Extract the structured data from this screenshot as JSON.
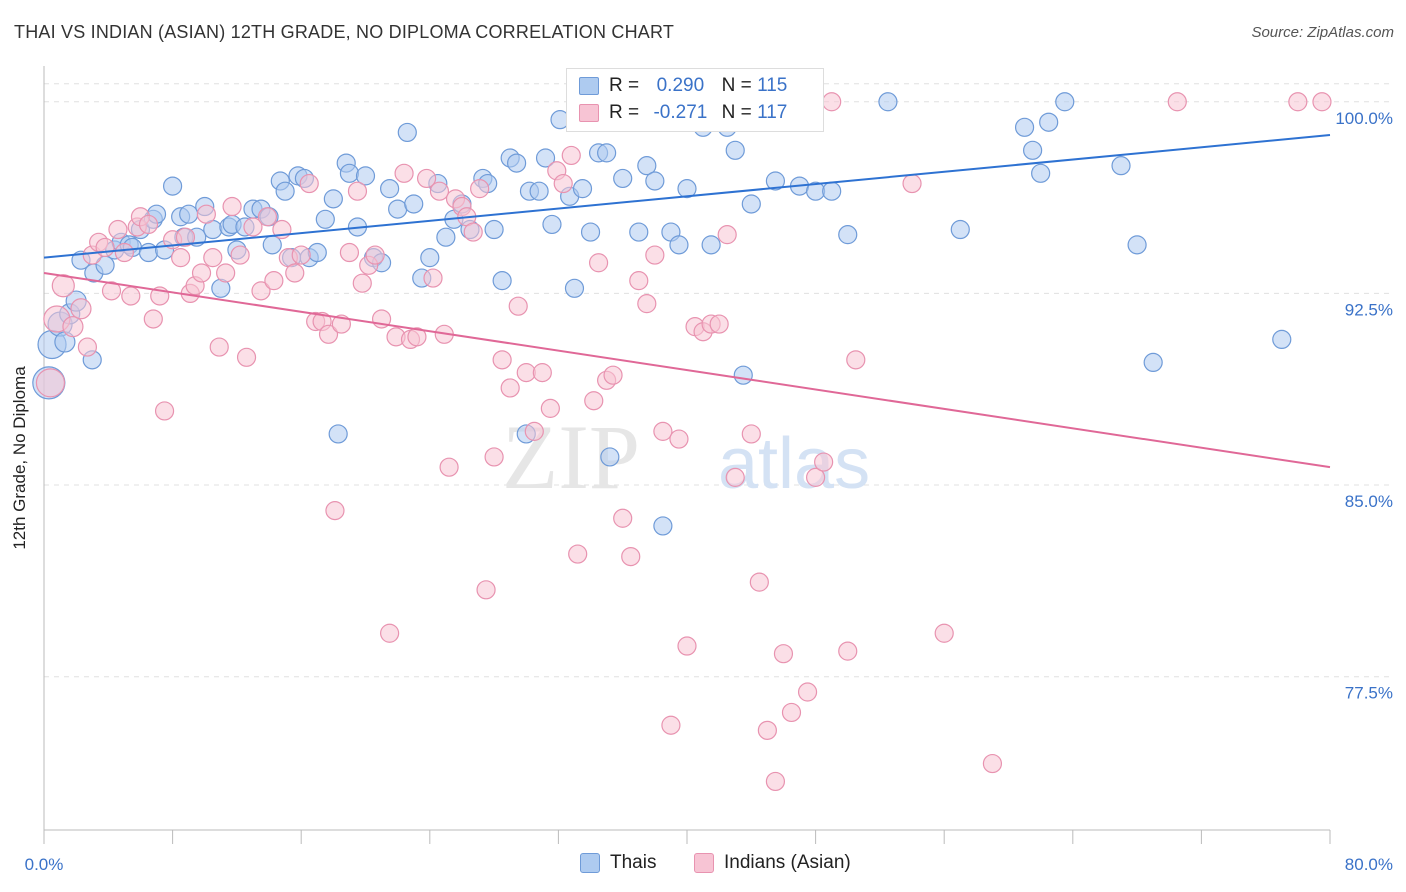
{
  "title": "THAI VS INDIAN (ASIAN) 12TH GRADE, NO DIPLOMA CORRELATION CHART",
  "source": "Source: ZipAtlas.com",
  "watermark": {
    "zip": "ZIP",
    "atlas": "atlas"
  },
  "colors": {
    "thai_fill": "#aecbf0",
    "thai_stroke": "#6f9bd8",
    "thai_line": "#2e72d2",
    "indian_fill": "#f7c4d4",
    "indian_stroke": "#e893b0",
    "indian_line": "#e06897",
    "axis_text": "#3a72c8",
    "grid": "#e0e0e0"
  },
  "legend_top": {
    "thai": {
      "r_label": "R =",
      "r_value": "0.290",
      "n_label": "N =",
      "n_value": "115"
    },
    "indian": {
      "r_label": "R =",
      "r_value": "-0.271",
      "n_label": "N =",
      "n_value": "117"
    }
  },
  "chart_data": {
    "type": "scatter",
    "title": "THAI VS INDIAN (ASIAN) 12TH GRADE, NO DIPLOMA CORRELATION CHART",
    "xlabel": "",
    "ylabel": "12th Grade, No Diploma",
    "xlim": [
      0,
      80
    ],
    "ylim": [
      71.5,
      101.4
    ],
    "x_tick_labels": [
      "0.0%",
      "80.0%"
    ],
    "y_ticks": [
      77.5,
      85.0,
      92.5,
      100.0
    ],
    "y_tick_labels": [
      "77.5%",
      "85.0%",
      "92.5%",
      "100.0%"
    ],
    "grid": true,
    "legend_placement": "bottom",
    "series": [
      {
        "name": "Thais",
        "trend": {
          "x": [
            0,
            80
          ],
          "y": [
            93.9,
            98.7
          ]
        },
        "points": [
          [
            0.3,
            89.0,
            16
          ],
          [
            0.5,
            90.5,
            14
          ],
          [
            1.0,
            91.3,
            12
          ],
          [
            1.3,
            90.6,
            10
          ],
          [
            1.6,
            91.7,
            10
          ],
          [
            2.0,
            92.2,
            10
          ],
          [
            2.3,
            93.8,
            9
          ],
          [
            3.0,
            89.9,
            9
          ],
          [
            3.1,
            93.3,
            9
          ],
          [
            3.8,
            93.6,
            9
          ],
          [
            4.4,
            94.2,
            9
          ],
          [
            4.8,
            94.5,
            9
          ],
          [
            5.3,
            94.4,
            9
          ],
          [
            5.5,
            94.3,
            9
          ],
          [
            6.0,
            95.0,
            9
          ],
          [
            6.5,
            94.1,
            9
          ],
          [
            6.8,
            95.4,
            9
          ],
          [
            7.0,
            95.6,
            9
          ],
          [
            7.5,
            94.2,
            9
          ],
          [
            8.0,
            96.7,
            9
          ],
          [
            8.5,
            95.5,
            9
          ],
          [
            8.7,
            94.7,
            9
          ],
          [
            9.0,
            95.6,
            9
          ],
          [
            9.5,
            94.7,
            9
          ],
          [
            10.0,
            95.9,
            9
          ],
          [
            10.5,
            95.0,
            9
          ],
          [
            11.0,
            92.7,
            9
          ],
          [
            11.5,
            95.1,
            9
          ],
          [
            11.7,
            95.2,
            9
          ],
          [
            12.0,
            94.2,
            9
          ],
          [
            12.5,
            95.1,
            9
          ],
          [
            13.0,
            95.8,
            9
          ],
          [
            13.5,
            95.8,
            9
          ],
          [
            14.0,
            95.5,
            9
          ],
          [
            14.2,
            94.4,
            9
          ],
          [
            14.7,
            96.9,
            9
          ],
          [
            15.0,
            96.5,
            9
          ],
          [
            15.4,
            93.9,
            9
          ],
          [
            15.8,
            97.1,
            9
          ],
          [
            16.2,
            97.0,
            9
          ],
          [
            16.5,
            93.9,
            9
          ],
          [
            17.0,
            94.1,
            9
          ],
          [
            17.5,
            95.4,
            9
          ],
          [
            18.0,
            96.2,
            9
          ],
          [
            18.3,
            87.0,
            9
          ],
          [
            18.8,
            97.6,
            9
          ],
          [
            19.0,
            97.2,
            9
          ],
          [
            19.5,
            95.1,
            9
          ],
          [
            20.0,
            97.1,
            9
          ],
          [
            20.5,
            93.9,
            9
          ],
          [
            21.0,
            93.7,
            9
          ],
          [
            21.5,
            96.6,
            9
          ],
          [
            22.0,
            95.8,
            9
          ],
          [
            22.6,
            98.8,
            9
          ],
          [
            23.0,
            96.0,
            9
          ],
          [
            23.5,
            93.1,
            9
          ],
          [
            24.0,
            93.9,
            9
          ],
          [
            24.5,
            96.8,
            9
          ],
          [
            25.0,
            94.7,
            9
          ],
          [
            25.5,
            95.4,
            9
          ],
          [
            26.0,
            96.0,
            9
          ],
          [
            26.5,
            95.0,
            9
          ],
          [
            27.3,
            97.0,
            9
          ],
          [
            27.6,
            96.8,
            9
          ],
          [
            28.0,
            95.0,
            9
          ],
          [
            28.5,
            93.0,
            9
          ],
          [
            29.0,
            97.8,
            9
          ],
          [
            29.4,
            97.6,
            9
          ],
          [
            30.0,
            87.0,
            9
          ],
          [
            30.2,
            96.5,
            9
          ],
          [
            30.8,
            96.5,
            9
          ],
          [
            31.2,
            97.8,
            9
          ],
          [
            31.6,
            95.2,
            9
          ],
          [
            32.1,
            99.3,
            9
          ],
          [
            32.7,
            96.3,
            9
          ],
          [
            33.0,
            92.7,
            9
          ],
          [
            33.5,
            96.6,
            9
          ],
          [
            34.0,
            94.9,
            9
          ],
          [
            34.5,
            98.0,
            9
          ],
          [
            35.0,
            98.0,
            9
          ],
          [
            35.2,
            86.1,
            9
          ],
          [
            36.0,
            97.0,
            9
          ],
          [
            37.0,
            94.9,
            9
          ],
          [
            37.5,
            97.5,
            9
          ],
          [
            38.0,
            96.9,
            9
          ],
          [
            38.5,
            83.4,
            9
          ],
          [
            39.0,
            94.9,
            9
          ],
          [
            39.5,
            94.4,
            9
          ],
          [
            40.0,
            96.6,
            9
          ],
          [
            40.5,
            100.0,
            9
          ],
          [
            41.0,
            99.0,
            9
          ],
          [
            41.5,
            94.4,
            9
          ],
          [
            42.5,
            99.0,
            9
          ],
          [
            43.0,
            98.1,
            9
          ],
          [
            43.5,
            89.3,
            9
          ],
          [
            44.0,
            96.0,
            9
          ],
          [
            45.5,
            96.9,
            9
          ],
          [
            46.0,
            100.0,
            9
          ],
          [
            47.0,
            96.7,
            9
          ],
          [
            48.0,
            96.5,
            9
          ],
          [
            49.0,
            96.5,
            9
          ],
          [
            50.0,
            94.8,
            9
          ],
          [
            52.5,
            100.0,
            9
          ],
          [
            57.0,
            95.0,
            9
          ],
          [
            61.0,
            99.0,
            9
          ],
          [
            61.5,
            98.1,
            9
          ],
          [
            62.0,
            97.2,
            9
          ],
          [
            62.5,
            99.2,
            9
          ],
          [
            63.5,
            100.0,
            9
          ],
          [
            67.0,
            97.5,
            9
          ],
          [
            68.0,
            94.4,
            9
          ],
          [
            69.0,
            89.8,
            9
          ],
          [
            77.0,
            90.7,
            9
          ]
        ]
      },
      {
        "name": "Indians (Asian)",
        "trend": {
          "x": [
            0,
            80
          ],
          "y": [
            93.3,
            85.7
          ]
        },
        "points": [
          [
            0.4,
            89.0,
            14
          ],
          [
            0.8,
            91.5,
            13
          ],
          [
            1.2,
            92.8,
            11
          ],
          [
            1.8,
            91.2,
            10
          ],
          [
            2.3,
            91.9,
            10
          ],
          [
            2.7,
            90.4,
            9
          ],
          [
            3.0,
            94.0,
            9
          ],
          [
            3.4,
            94.5,
            9
          ],
          [
            3.8,
            94.3,
            9
          ],
          [
            4.2,
            92.6,
            9
          ],
          [
            4.6,
            95.0,
            9
          ],
          [
            5.0,
            94.1,
            9
          ],
          [
            5.4,
            92.4,
            9
          ],
          [
            5.8,
            95.1,
            9
          ],
          [
            6.0,
            95.5,
            9
          ],
          [
            6.5,
            95.2,
            9
          ],
          [
            6.8,
            91.5,
            9
          ],
          [
            7.2,
            92.4,
            9
          ],
          [
            7.5,
            87.9,
            9
          ],
          [
            8.0,
            94.6,
            9
          ],
          [
            8.5,
            93.9,
            9
          ],
          [
            8.8,
            94.7,
            9
          ],
          [
            9.1,
            92.5,
            9
          ],
          [
            9.4,
            92.8,
            9
          ],
          [
            9.8,
            93.3,
            9
          ],
          [
            10.1,
            95.6,
            9
          ],
          [
            10.5,
            93.9,
            9
          ],
          [
            10.9,
            90.4,
            9
          ],
          [
            11.3,
            93.3,
            9
          ],
          [
            11.7,
            95.9,
            9
          ],
          [
            12.2,
            94.0,
            9
          ],
          [
            12.6,
            90.0,
            9
          ],
          [
            13.0,
            95.1,
            9
          ],
          [
            13.5,
            92.6,
            9
          ],
          [
            13.9,
            95.5,
            9
          ],
          [
            14.3,
            93.0,
            9
          ],
          [
            14.8,
            95.0,
            9
          ],
          [
            15.2,
            93.9,
            9
          ],
          [
            15.6,
            93.3,
            9
          ],
          [
            16.0,
            94.0,
            9
          ],
          [
            16.5,
            96.8,
            9
          ],
          [
            16.9,
            91.4,
            9
          ],
          [
            17.3,
            91.4,
            9
          ],
          [
            17.7,
            90.9,
            9
          ],
          [
            18.1,
            84.0,
            9
          ],
          [
            18.5,
            91.3,
            9
          ],
          [
            19.0,
            94.1,
            9
          ],
          [
            19.5,
            96.5,
            9
          ],
          [
            19.8,
            92.9,
            9
          ],
          [
            20.2,
            93.6,
            9
          ],
          [
            20.6,
            94.0,
            9
          ],
          [
            21.0,
            91.5,
            9
          ],
          [
            21.5,
            79.2,
            9
          ],
          [
            21.9,
            90.8,
            9
          ],
          [
            22.4,
            97.2,
            9
          ],
          [
            22.8,
            90.7,
            9
          ],
          [
            23.2,
            90.8,
            9
          ],
          [
            23.8,
            97.0,
            9
          ],
          [
            24.2,
            93.1,
            9
          ],
          [
            24.6,
            96.5,
            9
          ],
          [
            24.9,
            90.9,
            9
          ],
          [
            25.2,
            85.7,
            9
          ],
          [
            25.6,
            96.2,
            9
          ],
          [
            26.0,
            95.9,
            9
          ],
          [
            26.3,
            95.5,
            9
          ],
          [
            26.7,
            94.9,
            9
          ],
          [
            27.1,
            96.6,
            9
          ],
          [
            27.5,
            80.9,
            9
          ],
          [
            28.0,
            86.1,
            9
          ],
          [
            28.5,
            89.9,
            9
          ],
          [
            29.0,
            88.8,
            9
          ],
          [
            29.5,
            92.0,
            9
          ],
          [
            30.0,
            89.4,
            9
          ],
          [
            30.5,
            87.1,
            9
          ],
          [
            31.0,
            89.4,
            9
          ],
          [
            31.5,
            88.0,
            9
          ],
          [
            31.9,
            97.3,
            9
          ],
          [
            32.3,
            96.8,
            9
          ],
          [
            32.8,
            97.9,
            9
          ],
          [
            33.2,
            82.3,
            9
          ],
          [
            33.7,
            100.0,
            9
          ],
          [
            34.2,
            88.3,
            9
          ],
          [
            34.5,
            93.7,
            9
          ],
          [
            35.0,
            89.1,
            9
          ],
          [
            35.4,
            89.3,
            9
          ],
          [
            36.0,
            83.7,
            9
          ],
          [
            36.5,
            82.2,
            9
          ],
          [
            37.0,
            93.0,
            9
          ],
          [
            37.5,
            92.1,
            9
          ],
          [
            38.0,
            94.0,
            9
          ],
          [
            38.5,
            87.1,
            9
          ],
          [
            39.0,
            75.6,
            9
          ],
          [
            39.5,
            86.8,
            9
          ],
          [
            40.0,
            78.7,
            9
          ],
          [
            40.5,
            91.2,
            9
          ],
          [
            41.0,
            91.0,
            9
          ],
          [
            41.5,
            91.3,
            9
          ],
          [
            42.0,
            91.3,
            9
          ],
          [
            42.5,
            94.8,
            9
          ],
          [
            43.0,
            85.3,
            9
          ],
          [
            44.0,
            87.0,
            9
          ],
          [
            44.5,
            81.2,
            9
          ],
          [
            45.0,
            75.4,
            9
          ],
          [
            45.5,
            73.4,
            9
          ],
          [
            46.0,
            78.4,
            9
          ],
          [
            46.5,
            76.1,
            9
          ],
          [
            47.5,
            76.9,
            9
          ],
          [
            48.0,
            85.3,
            9
          ],
          [
            48.5,
            85.9,
            9
          ],
          [
            49.0,
            100.0,
            9
          ],
          [
            50.0,
            78.5,
            9
          ],
          [
            50.5,
            89.9,
            9
          ],
          [
            54.0,
            96.8,
            9
          ],
          [
            56.0,
            79.2,
            9
          ],
          [
            59.0,
            74.1,
            9
          ],
          [
            70.5,
            100.0,
            9
          ],
          [
            78.0,
            100.0,
            9
          ],
          [
            79.5,
            100.0,
            9
          ]
        ]
      }
    ]
  },
  "legend_bottom": [
    {
      "label": "Thais"
    },
    {
      "label": "Indians (Asian)"
    }
  ]
}
